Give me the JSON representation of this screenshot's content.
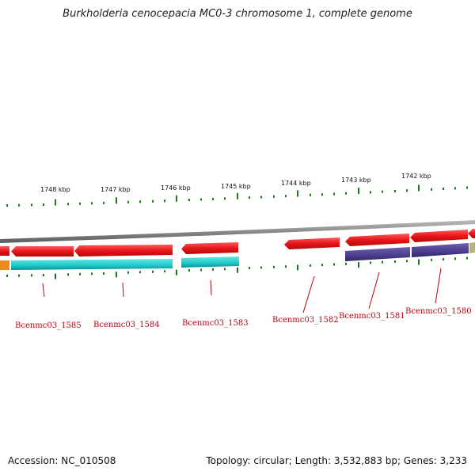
{
  "title": "Burkholderia cenocepacia MC0-3 chromosome 1, complete genome",
  "footer": {
    "accession": "Accession: NC_010508",
    "info": "Topology: circular; Length: 3,532,883 bp; Genes: 3,233"
  },
  "colors": {
    "forward_gene": "#e8161a",
    "cyan_gene": "#1fc8c8",
    "purple_gene": "#4a3f8e",
    "olive_gene": "#b7b27a",
    "orange_gene": "#f08a1c",
    "backbone": "#8a8a8a",
    "tick": "#1a7a1a",
    "label": "#c0000f"
  },
  "scale_labels": [
    "1748 kbp",
    "1747 kbp",
    "1746 kbp",
    "1745 kbp",
    "1744 kbp",
    "1743 kbp",
    "1742 kbp"
  ],
  "gene_labels": [
    "Bcenmc03_1585",
    "Bcenmc03_1584",
    "Bcenmc03_1583",
    "Bcenmc03_1582",
    "Bcenmc03_1581",
    "Bcenmc03_1580"
  ]
}
